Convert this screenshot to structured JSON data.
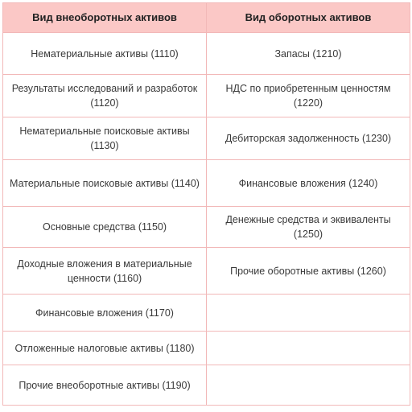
{
  "table": {
    "headers": [
      "Вид внеоборотных активов",
      "Вид оборотных активов"
    ],
    "rows": [
      [
        "Нематериальные активы (1110)",
        "Запасы (1210)"
      ],
      [
        "Результаты исследований и разработок (1120)",
        "НДС по приобретенным ценностям (1220)"
      ],
      [
        "Нематериальные поисковые активы (1130)",
        "Дебиторская задолженность (1230)"
      ],
      [
        "Материальные поисковые активы (1140)",
        "Финансовые вложения (1240)"
      ],
      [
        "Основные средства (1150)",
        "Денежные средства и эквиваленты (1250)"
      ],
      [
        "Доходные вложения в материальные ценности (1160)",
        "Прочие оборотные активы (1260)"
      ],
      [
        "Финансовые вложения (1170)",
        ""
      ],
      [
        "Отложенные налоговые активы (1180)",
        ""
      ],
      [
        "Прочие внеоборотные активы (1190)",
        ""
      ]
    ]
  },
  "colors": {
    "header_background": "#fbc8c6",
    "border": "#f2b8b8",
    "text": "#3a3a3a"
  }
}
